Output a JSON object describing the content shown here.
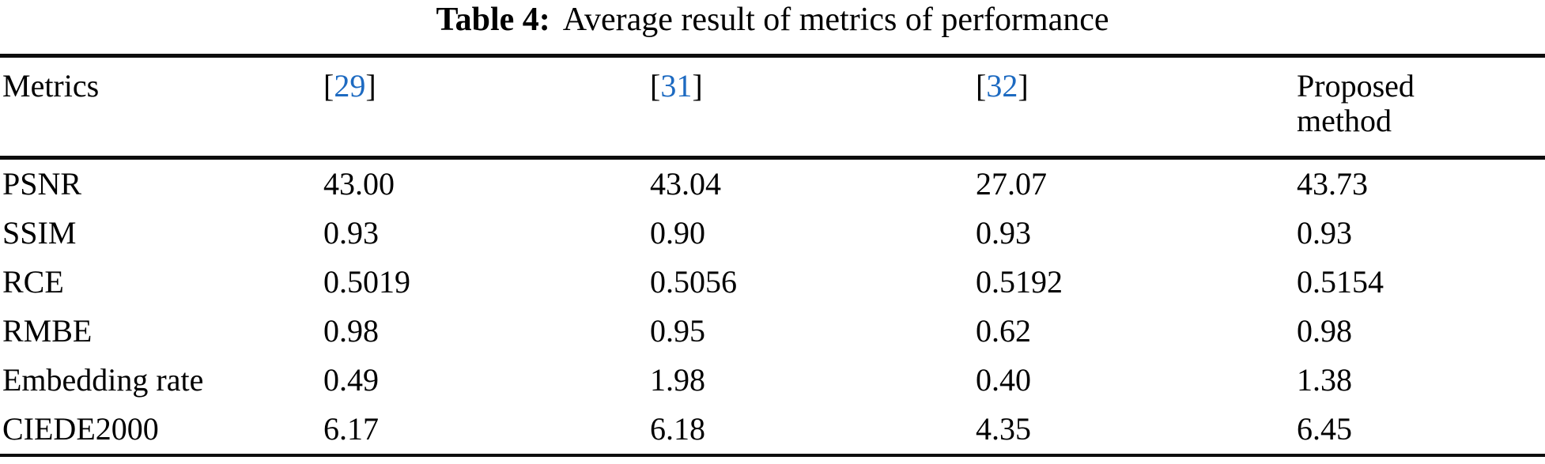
{
  "colors": {
    "citation_blue": "#1d6ac1",
    "text": "#000000",
    "rule": "#0d0d0d",
    "background": "#ffffff"
  },
  "caption": {
    "label": "Table 4:",
    "text": "Average result of metrics of performance"
  },
  "table": {
    "columns": [
      {
        "type": "text",
        "label": "Metrics"
      },
      {
        "type": "citation",
        "open": "[",
        "cite": "29",
        "close": "]"
      },
      {
        "type": "citation",
        "open": "[",
        "cite": "31",
        "close": "]"
      },
      {
        "type": "citation",
        "open": "[",
        "cite": "32",
        "close": "]"
      },
      {
        "type": "text",
        "label": "Proposed method"
      }
    ],
    "rows": [
      {
        "metric": "PSNR",
        "values": [
          "43.00",
          "43.04",
          "27.07",
          "43.73"
        ]
      },
      {
        "metric": "SSIM",
        "values": [
          "0.93",
          "0.90",
          "0.93",
          "0.93"
        ]
      },
      {
        "metric": "RCE",
        "values": [
          "0.5019",
          "0.5056",
          "0.5192",
          "0.5154"
        ]
      },
      {
        "metric": "RMBE",
        "values": [
          "0.98",
          "0.95",
          "0.62",
          "0.98"
        ]
      },
      {
        "metric": "Embedding rate",
        "values": [
          "0.49",
          "1.98",
          "0.40",
          "1.38"
        ]
      },
      {
        "metric": "CIEDE2000",
        "values": [
          "6.17",
          "6.18",
          "4.35",
          "6.45"
        ]
      }
    ]
  }
}
